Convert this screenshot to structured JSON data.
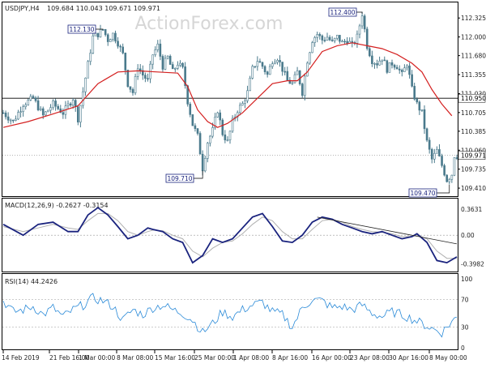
{
  "colors": {
    "background": "#ffffff",
    "price": "#4a7a8c",
    "ma": "#d42020",
    "macd": "#1a237e",
    "signal": "#b0b0b0",
    "rsi": "#2a8ad8",
    "trendline": "#222222",
    "label_border": "#1a237e",
    "axis_text": "#222222",
    "watermark": "#d6d6d6"
  },
  "header": {
    "symbol": "USDJPY,H4",
    "ohlc": "109.684 110.043 109.671 109.971"
  },
  "watermark": "ActionForex.com",
  "chart_data": [
    {
      "type": "candlestick",
      "symbol": "USDJPY,H4",
      "yticks": [
        "112.325",
        "112.000",
        "111.680",
        "111.355",
        "111.030",
        "110.705",
        "110.385",
        "110.060",
        "109.735",
        "109.410"
      ],
      "ylim": [
        109.3,
        112.55
      ],
      "markers": {
        "current": "109.971",
        "level": "110.950"
      },
      "annotations": [
        "112.130",
        "112.400",
        "109.710",
        "109.470"
      ],
      "x_labels": [
        "14 Feb 2019",
        "21 Feb 16:00",
        "1 Mar 00:00",
        "8 Mar 08:00",
        "15 Mar 16:00",
        "25 Mar 00:00",
        "1 Apr 08:00",
        "8 Apr 16:00",
        "16 Apr 00:00",
        "23 Apr 08:00",
        "30 Apr 16:00",
        "8 May 00:00"
      ],
      "close_points": [
        [
          0,
          110.7
        ],
        [
          4,
          110.55
        ],
        [
          8,
          110.85
        ],
        [
          12,
          110.95
        ],
        [
          16,
          110.65
        ],
        [
          20,
          110.85
        ],
        [
          24,
          110.7
        ],
        [
          28,
          110.95
        ],
        [
          30,
          110.6
        ],
        [
          33,
          111.3
        ],
        [
          36,
          112.0
        ],
        [
          38,
          112.05
        ],
        [
          40,
          112.13
        ],
        [
          42,
          111.95
        ],
        [
          44,
          112.05
        ],
        [
          46,
          111.9
        ],
        [
          48,
          111.7
        ],
        [
          50,
          111.2
        ],
        [
          52,
          111.05
        ],
        [
          54,
          111.5
        ],
        [
          56,
          111.35
        ],
        [
          58,
          111.25
        ],
        [
          60,
          111.7
        ],
        [
          62,
          111.85
        ],
        [
          64,
          111.5
        ],
        [
          66,
          111.65
        ],
        [
          68,
          111.4
        ],
        [
          70,
          111.55
        ],
        [
          72,
          111.45
        ],
        [
          74,
          110.9
        ],
        [
          76,
          110.5
        ],
        [
          78,
          110.3
        ],
        [
          80,
          109.75
        ],
        [
          82,
          110.2
        ],
        [
          84,
          110.4
        ],
        [
          86,
          110.75
        ],
        [
          88,
          110.35
        ],
        [
          90,
          110.2
        ],
        [
          92,
          110.55
        ],
        [
          94,
          110.75
        ],
        [
          96,
          110.85
        ],
        [
          98,
          111.05
        ],
        [
          100,
          111.45
        ],
        [
          102,
          111.6
        ],
        [
          104,
          111.5
        ],
        [
          106,
          111.35
        ],
        [
          108,
          111.6
        ],
        [
          110,
          111.65
        ],
        [
          112,
          111.45
        ],
        [
          114,
          111.25
        ],
        [
          116,
          111.2
        ],
        [
          118,
          111.4
        ],
        [
          120,
          111.05
        ],
        [
          122,
          111.6
        ],
        [
          124,
          111.95
        ],
        [
          126,
          112.05
        ],
        [
          128,
          111.95
        ],
        [
          130,
          112.0
        ],
        [
          132,
          111.9
        ],
        [
          134,
          112.0
        ],
        [
          136,
          111.9
        ],
        [
          138,
          111.95
        ],
        [
          140,
          111.85
        ],
        [
          142,
          112.0
        ],
        [
          144,
          112.4
        ],
        [
          146,
          111.85
        ],
        [
          148,
          111.6
        ],
        [
          150,
          111.55
        ],
        [
          152,
          111.65
        ],
        [
          154,
          111.45
        ],
        [
          156,
          111.55
        ],
        [
          158,
          111.5
        ],
        [
          160,
          111.35
        ],
        [
          162,
          111.55
        ],
        [
          164,
          111.1
        ],
        [
          166,
          110.85
        ],
        [
          168,
          110.7
        ],
        [
          170,
          110.2
        ],
        [
          172,
          109.9
        ],
        [
          174,
          110.05
        ],
        [
          176,
          109.8
        ],
        [
          178,
          109.55
        ],
        [
          180,
          109.65
        ],
        [
          181,
          109.97
        ]
      ],
      "ma_points": [
        [
          0,
          110.45
        ],
        [
          10,
          110.55
        ],
        [
          20,
          110.68
        ],
        [
          30,
          110.82
        ],
        [
          38,
          111.2
        ],
        [
          46,
          111.4
        ],
        [
          54,
          111.42
        ],
        [
          62,
          111.4
        ],
        [
          70,
          111.38
        ],
        [
          74,
          111.15
        ],
        [
          78,
          110.75
        ],
        [
          82,
          110.55
        ],
        [
          86,
          110.45
        ],
        [
          90,
          110.52
        ],
        [
          96,
          110.7
        ],
        [
          102,
          110.95
        ],
        [
          108,
          111.2
        ],
        [
          114,
          111.25
        ],
        [
          118,
          111.25
        ],
        [
          122,
          111.4
        ],
        [
          128,
          111.75
        ],
        [
          134,
          111.85
        ],
        [
          140,
          111.9
        ],
        [
          146,
          111.85
        ],
        [
          152,
          111.8
        ],
        [
          158,
          111.7
        ],
        [
          164,
          111.55
        ],
        [
          168,
          111.4
        ],
        [
          172,
          111.1
        ],
        [
          176,
          110.85
        ],
        [
          180,
          110.65
        ]
      ]
    },
    {
      "type": "line",
      "name": "MACD(12,26,9) -0.2627 -0.3154",
      "yticks": [
        "0.3631",
        "0.00",
        "-0.3982"
      ],
      "ylim": [
        -0.48,
        0.45
      ],
      "x": [
        0,
        8,
        14,
        20,
        26,
        30,
        34,
        38,
        42,
        46,
        50,
        54,
        58,
        60,
        64,
        68,
        72,
        76,
        80,
        84,
        88,
        92,
        96,
        100,
        104,
        108,
        112,
        116,
        120,
        124,
        128,
        132,
        136,
        140,
        144,
        148,
        152,
        156,
        160,
        164,
        166,
        170,
        174,
        178,
        182
      ],
      "series": [
        {
          "name": "macd",
          "values": [
            0.15,
            0.0,
            0.15,
            0.18,
            0.05,
            0.05,
            0.28,
            0.38,
            0.28,
            0.12,
            -0.05,
            0.0,
            0.1,
            0.08,
            0.05,
            -0.05,
            -0.1,
            -0.38,
            -0.28,
            -0.05,
            -0.1,
            -0.05,
            0.1,
            0.25,
            0.3,
            0.12,
            -0.08,
            -0.1,
            0.0,
            0.18,
            0.25,
            0.22,
            0.15,
            0.1,
            0.05,
            0.02,
            0.05,
            0.0,
            -0.05,
            -0.02,
            0.02,
            -0.1,
            -0.35,
            -0.38,
            -0.3
          ]
        },
        {
          "name": "signal",
          "values": [
            0.12,
            0.05,
            0.1,
            0.15,
            0.1,
            0.08,
            0.2,
            0.3,
            0.3,
            0.2,
            0.05,
            0.0,
            0.05,
            0.07,
            0.06,
            0.0,
            -0.05,
            -0.22,
            -0.3,
            -0.18,
            -0.1,
            -0.08,
            0.02,
            0.15,
            0.25,
            0.2,
            0.05,
            -0.05,
            -0.05,
            0.08,
            0.2,
            0.22,
            0.18,
            0.12,
            0.08,
            0.05,
            0.04,
            0.02,
            -0.02,
            -0.02,
            0.0,
            -0.05,
            -0.22,
            -0.32,
            -0.32
          ]
        }
      ],
      "trendline": [
        [
          126,
          0.25
        ],
        [
          182,
          -0.12
        ]
      ]
    },
    {
      "type": "line",
      "name": "RSI(14) 44.2426",
      "yticks": [
        "100",
        "70",
        "30",
        "0"
      ],
      "ylim": [
        0,
        100
      ],
      "x": [
        0,
        4,
        8,
        12,
        16,
        20,
        24,
        28,
        32,
        36,
        40,
        44,
        48,
        52,
        56,
        60,
        64,
        68,
        72,
        76,
        80,
        84,
        88,
        92,
        96,
        100,
        104,
        108,
        112,
        116,
        120,
        124,
        128,
        132,
        136,
        140,
        144,
        148,
        152,
        156,
        160,
        164,
        168,
        172,
        176,
        180,
        182
      ],
      "values": [
        68,
        52,
        55,
        60,
        48,
        58,
        45,
        55,
        62,
        72,
        68,
        60,
        40,
        55,
        48,
        58,
        62,
        55,
        50,
        40,
        22,
        35,
        52,
        45,
        55,
        62,
        66,
        52,
        48,
        30,
        58,
        70,
        68,
        58,
        60,
        55,
        62,
        50,
        45,
        52,
        48,
        42,
        35,
        28,
        22,
        38,
        44
      ]
    }
  ]
}
